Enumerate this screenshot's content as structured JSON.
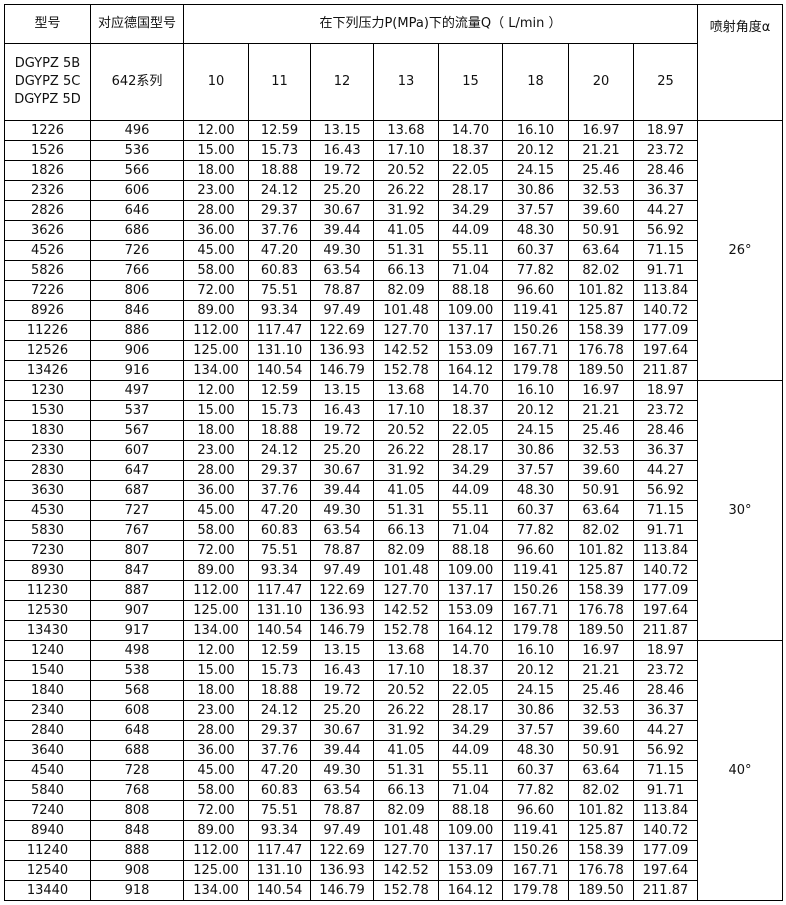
{
  "header": {
    "model": "型号",
    "german_model": "对应德国型号",
    "flow_title": "在下列压力P(MPa)下的流量Q（ L/min ）",
    "angle": "喷射角度α",
    "model_series": "DGYPZ 5B DGYPZ 5C DGYPZ 5D",
    "german_series": "642系列",
    "pressures": [
      "10",
      "11",
      "12",
      "13",
      "15",
      "18",
      "20",
      "25"
    ]
  },
  "groups": [
    {
      "angle": "26°",
      "rows": [
        [
          "1226",
          "496",
          "12.00",
          "12.59",
          "13.15",
          "13.68",
          "14.70",
          "16.10",
          "16.97",
          "18.97"
        ],
        [
          "1526",
          "536",
          "15.00",
          "15.73",
          "16.43",
          "17.10",
          "18.37",
          "20.12",
          "21.21",
          "23.72"
        ],
        [
          "1826",
          "566",
          "18.00",
          "18.88",
          "19.72",
          "20.52",
          "22.05",
          "24.15",
          "25.46",
          "28.46"
        ],
        [
          "2326",
          "606",
          "23.00",
          "24.12",
          "25.20",
          "26.22",
          "28.17",
          "30.86",
          "32.53",
          "36.37"
        ],
        [
          "2826",
          "646",
          "28.00",
          "29.37",
          "30.67",
          "31.92",
          "34.29",
          "37.57",
          "39.60",
          "44.27"
        ],
        [
          "3626",
          "686",
          "36.00",
          "37.76",
          "39.44",
          "41.05",
          "44.09",
          "48.30",
          "50.91",
          "56.92"
        ],
        [
          "4526",
          "726",
          "45.00",
          "47.20",
          "49.30",
          "51.31",
          "55.11",
          "60.37",
          "63.64",
          "71.15"
        ],
        [
          "5826",
          "766",
          "58.00",
          "60.83",
          "63.54",
          "66.13",
          "71.04",
          "77.82",
          "82.02",
          "91.71"
        ],
        [
          "7226",
          "806",
          "72.00",
          "75.51",
          "78.87",
          "82.09",
          "88.18",
          "96.60",
          "101.82",
          "113.84"
        ],
        [
          "8926",
          "846",
          "89.00",
          "93.34",
          "97.49",
          "101.48",
          "109.00",
          "119.41",
          "125.87",
          "140.72"
        ],
        [
          "11226",
          "886",
          "112.00",
          "117.47",
          "122.69",
          "127.70",
          "137.17",
          "150.26",
          "158.39",
          "177.09"
        ],
        [
          "12526",
          "906",
          "125.00",
          "131.10",
          "136.93",
          "142.52",
          "153.09",
          "167.71",
          "176.78",
          "197.64"
        ],
        [
          "13426",
          "916",
          "134.00",
          "140.54",
          "146.79",
          "152.78",
          "164.12",
          "179.78",
          "189.50",
          "211.87"
        ]
      ]
    },
    {
      "angle": "30°",
      "rows": [
        [
          "1230",
          "497",
          "12.00",
          "12.59",
          "13.15",
          "13.68",
          "14.70",
          "16.10",
          "16.97",
          "18.97"
        ],
        [
          "1530",
          "537",
          "15.00",
          "15.73",
          "16.43",
          "17.10",
          "18.37",
          "20.12",
          "21.21",
          "23.72"
        ],
        [
          "1830",
          "567",
          "18.00",
          "18.88",
          "19.72",
          "20.52",
          "22.05",
          "24.15",
          "25.46",
          "28.46"
        ],
        [
          "2330",
          "607",
          "23.00",
          "24.12",
          "25.20",
          "26.22",
          "28.17",
          "30.86",
          "32.53",
          "36.37"
        ],
        [
          "2830",
          "647",
          "28.00",
          "29.37",
          "30.67",
          "31.92",
          "34.29",
          "37.57",
          "39.60",
          "44.27"
        ],
        [
          "3630",
          "687",
          "36.00",
          "37.76",
          "39.44",
          "41.05",
          "44.09",
          "48.30",
          "50.91",
          "56.92"
        ],
        [
          "4530",
          "727",
          "45.00",
          "47.20",
          "49.30",
          "51.31",
          "55.11",
          "60.37",
          "63.64",
          "71.15"
        ],
        [
          "5830",
          "767",
          "58.00",
          "60.83",
          "63.54",
          "66.13",
          "71.04",
          "77.82",
          "82.02",
          "91.71"
        ],
        [
          "7230",
          "807",
          "72.00",
          "75.51",
          "78.87",
          "82.09",
          "88.18",
          "96.60",
          "101.82",
          "113.84"
        ],
        [
          "8930",
          "847",
          "89.00",
          "93.34",
          "97.49",
          "101.48",
          "109.00",
          "119.41",
          "125.87",
          "140.72"
        ],
        [
          "11230",
          "887",
          "112.00",
          "117.47",
          "122.69",
          "127.70",
          "137.17",
          "150.26",
          "158.39",
          "177.09"
        ],
        [
          "12530",
          "907",
          "125.00",
          "131.10",
          "136.93",
          "142.52",
          "153.09",
          "167.71",
          "176.78",
          "197.64"
        ],
        [
          "13430",
          "917",
          "134.00",
          "140.54",
          "146.79",
          "152.78",
          "164.12",
          "179.78",
          "189.50",
          "211.87"
        ]
      ]
    },
    {
      "angle": "40°",
      "rows": [
        [
          "1240",
          "498",
          "12.00",
          "12.59",
          "13.15",
          "13.68",
          "14.70",
          "16.10",
          "16.97",
          "18.97"
        ],
        [
          "1540",
          "538",
          "15.00",
          "15.73",
          "16.43",
          "17.10",
          "18.37",
          "20.12",
          "21.21",
          "23.72"
        ],
        [
          "1840",
          "568",
          "18.00",
          "18.88",
          "19.72",
          "20.52",
          "22.05",
          "24.15",
          "25.46",
          "28.46"
        ],
        [
          "2340",
          "608",
          "23.00",
          "24.12",
          "25.20",
          "26.22",
          "28.17",
          "30.86",
          "32.53",
          "36.37"
        ],
        [
          "2840",
          "648",
          "28.00",
          "29.37",
          "30.67",
          "31.92",
          "34.29",
          "37.57",
          "39.60",
          "44.27"
        ],
        [
          "3640",
          "688",
          "36.00",
          "37.76",
          "39.44",
          "41.05",
          "44.09",
          "48.30",
          "50.91",
          "56.92"
        ],
        [
          "4540",
          "728",
          "45.00",
          "47.20",
          "49.30",
          "51.31",
          "55.11",
          "60.37",
          "63.64",
          "71.15"
        ],
        [
          "5840",
          "768",
          "58.00",
          "60.83",
          "63.54",
          "66.13",
          "71.04",
          "77.82",
          "82.02",
          "91.71"
        ],
        [
          "7240",
          "808",
          "72.00",
          "75.51",
          "78.87",
          "82.09",
          "88.18",
          "96.60",
          "101.82",
          "113.84"
        ],
        [
          "8940",
          "848",
          "89.00",
          "93.34",
          "97.49",
          "101.48",
          "109.00",
          "119.41",
          "125.87",
          "140.72"
        ],
        [
          "11240",
          "888",
          "112.00",
          "117.47",
          "122.69",
          "127.70",
          "137.17",
          "150.26",
          "158.39",
          "177.09"
        ],
        [
          "12540",
          "908",
          "125.00",
          "131.10",
          "136.93",
          "142.52",
          "153.09",
          "167.71",
          "176.78",
          "197.64"
        ],
        [
          "13440",
          "918",
          "134.00",
          "140.54",
          "146.79",
          "152.78",
          "164.12",
          "179.78",
          "189.50",
          "211.87"
        ]
      ]
    }
  ]
}
